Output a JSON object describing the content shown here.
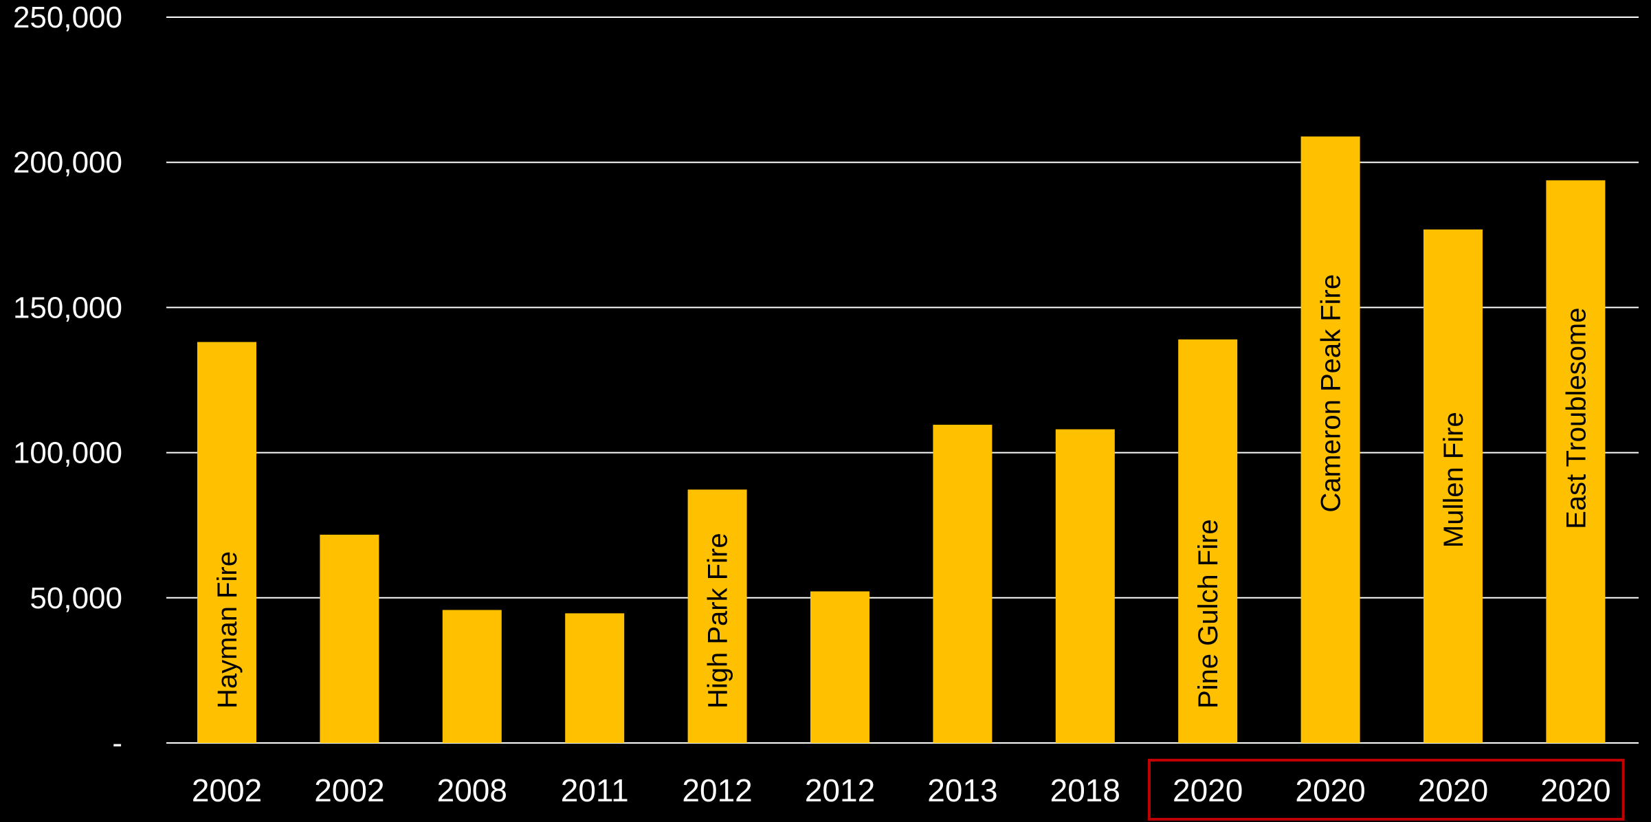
{
  "colors": {
    "background": "#000000",
    "bar": "#FFC000",
    "gridline": "#FFFFFF",
    "text": "#FFFFFF",
    "bar_label": "#000000",
    "highlight_box": "#C00000"
  },
  "chart_data": {
    "type": "bar",
    "title": "",
    "xlabel": "",
    "ylabel": "",
    "ylim": [
      0,
      250000
    ],
    "grid": true,
    "legend": "none",
    "y_ticks": [
      {
        "value": 0,
        "label": "-"
      },
      {
        "value": 50000,
        "label": "50,000"
      },
      {
        "value": 100000,
        "label": "100,000"
      },
      {
        "value": 150000,
        "label": "150,000"
      },
      {
        "value": 200000,
        "label": "200,000"
      },
      {
        "value": 250000,
        "label": "250,000"
      }
    ],
    "categories": [
      "2002",
      "2002",
      "2008",
      "2011",
      "2012",
      "2012",
      "2013",
      "2018",
      "2020",
      "2020",
      "2020",
      "2020"
    ],
    "values": [
      138114,
      71739,
      45810,
      44662,
      87284,
      52216,
      109615,
      108045,
      139007,
      208913,
      176878,
      193812
    ],
    "bar_labels": [
      "Hayman Fire",
      "",
      "",
      "",
      "High Park Fire",
      "",
      "",
      "",
      "Pine Gulch Fire",
      "Cameron Peak Fire",
      "Mullen Fire",
      "East Troublesome"
    ],
    "highlighted_categories": [
      8,
      9,
      10,
      11
    ]
  }
}
